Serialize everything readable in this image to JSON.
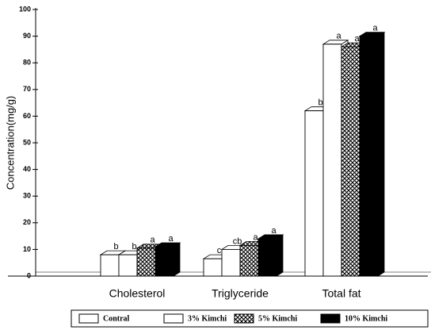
{
  "chart_data": {
    "type": "bar3d",
    "y_label": "Concentration(mg/g)",
    "categories": [
      "Cholesterol",
      "Triglyceride",
      "Total fat"
    ],
    "series": [
      {
        "name": "Contral",
        "color": "#ffffff",
        "values": [
          8,
          6.5,
          62
        ],
        "letters": [
          "b",
          "c",
          "b"
        ]
      },
      {
        "name": "3% Kimchi",
        "color": "#ffffff",
        "values": [
          8,
          10,
          87
        ],
        "letters": [
          "b",
          "cb",
          "a"
        ]
      },
      {
        "name": "5% Kimchi",
        "color": "#ffffff",
        "pattern": "crosshatch",
        "values": [
          10.5,
          11.5,
          86
        ],
        "letters": [
          "a",
          "a",
          "a"
        ]
      },
      {
        "name": "10% Kimchi",
        "color": "#000000",
        "values": [
          11,
          14,
          90
        ],
        "letters": [
          "a",
          "a",
          "a"
        ]
      }
    ],
    "ylim": [
      0,
      100
    ],
    "yticks": [
      0,
      10,
      20,
      30,
      40,
      50,
      60,
      70,
      80,
      90,
      100
    ]
  }
}
